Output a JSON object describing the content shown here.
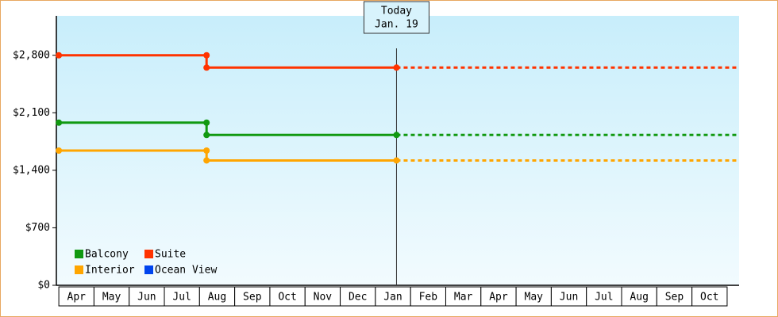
{
  "chart_data": {
    "type": "line",
    "step": true,
    "categories": [
      "Apr",
      "May",
      "Jun",
      "Jul",
      "Aug",
      "Sep",
      "Oct",
      "Nov",
      "Dec",
      "Jan",
      "Feb",
      "Mar",
      "Apr",
      "May",
      "Jun",
      "Jul",
      "Aug",
      "Sep",
      "Oct"
    ],
    "x": [
      0,
      4.2,
      4.2,
      9.6
    ],
    "xlim": [
      -0.07,
      19.34
    ],
    "series": [
      {
        "name": "Balcony",
        "color": "#119911",
        "values": [
          1980,
          1980,
          1830,
          1830
        ]
      },
      {
        "name": "Suite",
        "color": "#ff3300",
        "values": [
          2800,
          2800,
          2650,
          2650
        ]
      },
      {
        "name": "Interior",
        "color": "#ffa500",
        "values": [
          1640,
          1640,
          1520,
          1520
        ]
      },
      {
        "name": "Ocean View",
        "color": "#0044ee",
        "values": [
          null,
          null,
          null,
          null
        ]
      }
    ],
    "ylim": [
      0,
      3280
    ],
    "yticks": [
      {
        "value": 0,
        "label": "$0"
      },
      {
        "value": 700,
        "label": "$700"
      },
      {
        "value": 1400,
        "label": "$1,400"
      },
      {
        "value": 2100,
        "label": "$2,100"
      },
      {
        "value": 2800,
        "label": "$2,800"
      }
    ],
    "annotation": {
      "x": 9.6,
      "lines": [
        "Today",
        "Jan. 19"
      ]
    },
    "legend": "lower left",
    "projection": true
  }
}
